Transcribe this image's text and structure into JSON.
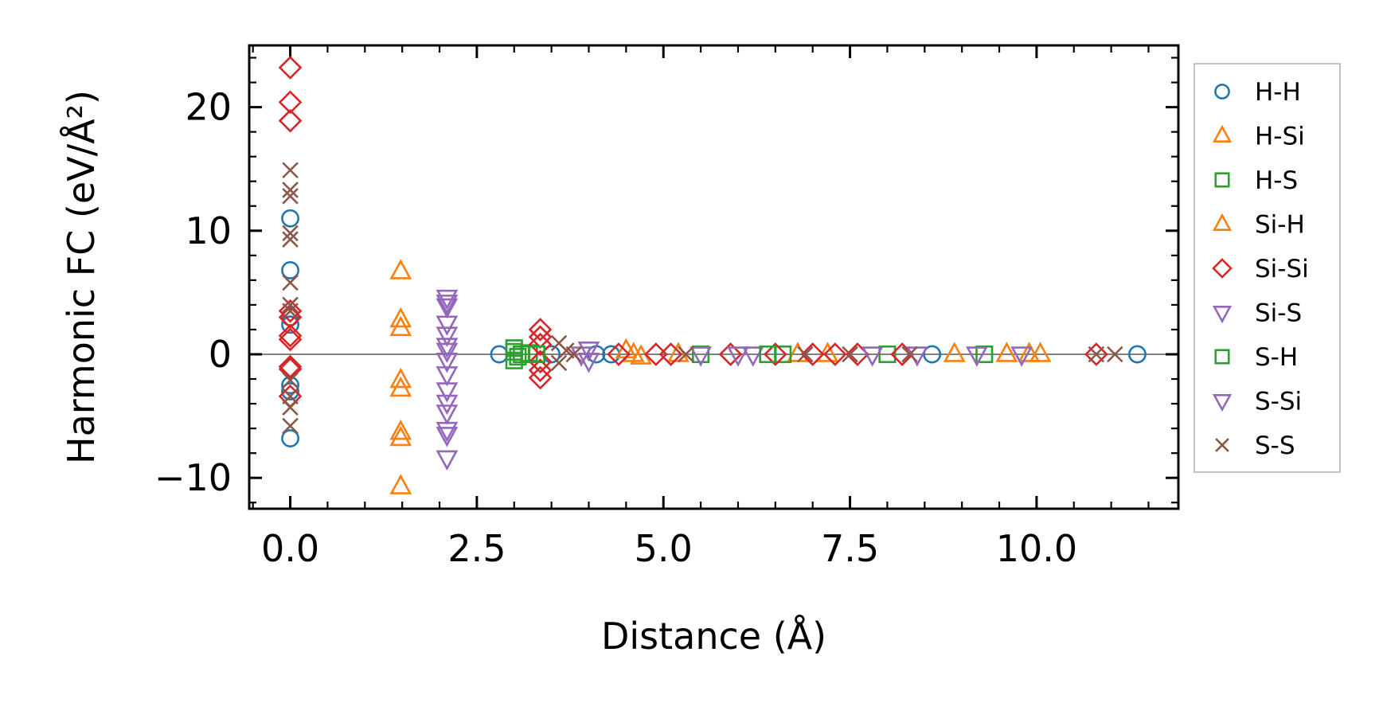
{
  "chart_data": {
    "type": "scatter",
    "title": "",
    "xlabel": "Distance (Å)",
    "ylabel": "Harmonic FC (eV/Å²)",
    "xlim": [
      -0.55,
      11.9
    ],
    "ylim": [
      -12.5,
      25
    ],
    "x_ticks": [
      0.0,
      2.5,
      5.0,
      7.5,
      10.0
    ],
    "x_tick_labels": [
      "0.0",
      "2.5",
      "5.0",
      "7.5",
      "10.0"
    ],
    "y_ticks": [
      -10,
      0,
      10,
      20
    ],
    "y_tick_labels": [
      "−10",
      "0",
      "10",
      "20"
    ],
    "zero_line": 0,
    "grid": false,
    "legend_position": "right-outside",
    "series": [
      {
        "name": "H-H",
        "marker": "circle",
        "color": "#1f77b4",
        "points": [
          [
            0,
            11.0
          ],
          [
            0,
            6.8
          ],
          [
            0,
            3.0
          ],
          [
            0,
            2.4
          ],
          [
            0,
            -2.5
          ],
          [
            0,
            -3.0
          ],
          [
            0,
            -6.8
          ],
          [
            2.8,
            0
          ],
          [
            3.5,
            0
          ],
          [
            4.1,
            0
          ],
          [
            4.3,
            0
          ],
          [
            8.6,
            0
          ],
          [
            11.35,
            0
          ]
        ]
      },
      {
        "name": "H-Si",
        "marker": "triangle-up",
        "color": "#ff7f0e",
        "points": [
          [
            1.48,
            6.7
          ],
          [
            1.48,
            2.8
          ],
          [
            1.48,
            2.1
          ],
          [
            1.48,
            -2.1
          ],
          [
            1.48,
            -2.8
          ],
          [
            1.48,
            -6.3
          ],
          [
            1.48,
            -6.8
          ],
          [
            1.48,
            -10.7
          ],
          [
            4.6,
            0
          ],
          [
            5.2,
            0
          ],
          [
            6.8,
            0
          ],
          [
            8.9,
            0
          ],
          [
            9.6,
            0
          ],
          [
            10.05,
            0
          ]
        ]
      },
      {
        "name": "H-S",
        "marker": "square",
        "color": "#2ca02c",
        "points": [
          [
            3.0,
            0.2
          ],
          [
            3.05,
            -0.2
          ],
          [
            3.1,
            0
          ],
          [
            3.2,
            0.1
          ],
          [
            5.5,
            0
          ],
          [
            6.6,
            0
          ],
          [
            8.0,
            0
          ],
          [
            9.3,
            0
          ]
        ]
      },
      {
        "name": "Si-H",
        "marker": "triangle-up",
        "color": "#ff7f0e",
        "points": [
          [
            4.5,
            0.3
          ],
          [
            4.7,
            -0.2
          ],
          [
            7.2,
            0
          ],
          [
            9.9,
            0
          ]
        ]
      },
      {
        "name": "Si-Si",
        "marker": "diamond",
        "color": "#d62728",
        "points": [
          [
            0,
            23.2
          ],
          [
            0,
            20.4
          ],
          [
            0,
            18.9
          ],
          [
            0,
            3.5
          ],
          [
            0,
            3.0
          ],
          [
            0,
            1.2
          ],
          [
            0,
            1.5
          ],
          [
            0,
            -1.0
          ],
          [
            0,
            -1.2
          ],
          [
            0,
            -3.4
          ],
          [
            3.35,
            2.0
          ],
          [
            3.35,
            1.4
          ],
          [
            3.35,
            0.8
          ],
          [
            3.35,
            -0.6
          ],
          [
            3.35,
            -1.3
          ],
          [
            3.35,
            -1.9
          ],
          [
            4.4,
            0
          ],
          [
            4.9,
            0
          ],
          [
            5.1,
            0
          ],
          [
            5.9,
            0
          ],
          [
            6.5,
            0
          ],
          [
            7.0,
            0
          ],
          [
            7.3,
            0
          ],
          [
            7.6,
            0
          ],
          [
            8.2,
            0
          ],
          [
            10.8,
            0
          ]
        ]
      },
      {
        "name": "Si-S",
        "marker": "triangle-down",
        "color": "#9467bd",
        "points": [
          [
            2.1,
            4.6
          ],
          [
            2.1,
            3.9
          ],
          [
            2.1,
            2.5
          ],
          [
            2.1,
            1.6
          ],
          [
            2.1,
            0.7
          ],
          [
            2.1,
            -0.5
          ],
          [
            2.1,
            -1.6
          ],
          [
            2.1,
            -2.9
          ],
          [
            2.1,
            -3.9
          ],
          [
            2.1,
            -4.7
          ],
          [
            2.1,
            -6.1
          ],
          [
            2.1,
            -6.5
          ],
          [
            2.1,
            -8.4
          ],
          [
            4.0,
            0.4
          ],
          [
            4.0,
            -0.5
          ],
          [
            5.5,
            0
          ],
          [
            6.2,
            0
          ],
          [
            7.8,
            0
          ],
          [
            9.2,
            0
          ],
          [
            9.8,
            0
          ]
        ]
      },
      {
        "name": "S-H",
        "marker": "square",
        "color": "#2ca02c",
        "points": [
          [
            3.0,
            0.5
          ],
          [
            3.0,
            -0.5
          ],
          [
            3.3,
            0
          ],
          [
            6.4,
            0
          ]
        ]
      },
      {
        "name": "S-Si",
        "marker": "triangle-down",
        "color": "#9467bd",
        "points": [
          [
            2.1,
            4.2
          ],
          [
            2.1,
            0.3
          ],
          [
            3.9,
            0
          ],
          [
            6.0,
            0
          ],
          [
            8.4,
            0
          ]
        ]
      },
      {
        "name": "S-S",
        "marker": "x",
        "color": "#8c564b",
        "points": [
          [
            0,
            14.9
          ],
          [
            0,
            13.3
          ],
          [
            0,
            12.8
          ],
          [
            0,
            9.8
          ],
          [
            0,
            9.3
          ],
          [
            0,
            5.8
          ],
          [
            0,
            4.0
          ],
          [
            0,
            3.5
          ],
          [
            0,
            -2.1
          ],
          [
            0,
            -3.4
          ],
          [
            0,
            -4.3
          ],
          [
            0,
            -5.8
          ],
          [
            3.6,
            0.9
          ],
          [
            3.6,
            -0.7
          ],
          [
            3.7,
            0.3
          ],
          [
            3.8,
            0
          ],
          [
            5.3,
            0
          ],
          [
            6.9,
            0
          ],
          [
            7.5,
            0
          ],
          [
            8.3,
            0
          ],
          [
            10.8,
            0
          ],
          [
            11.05,
            0
          ]
        ]
      }
    ]
  }
}
